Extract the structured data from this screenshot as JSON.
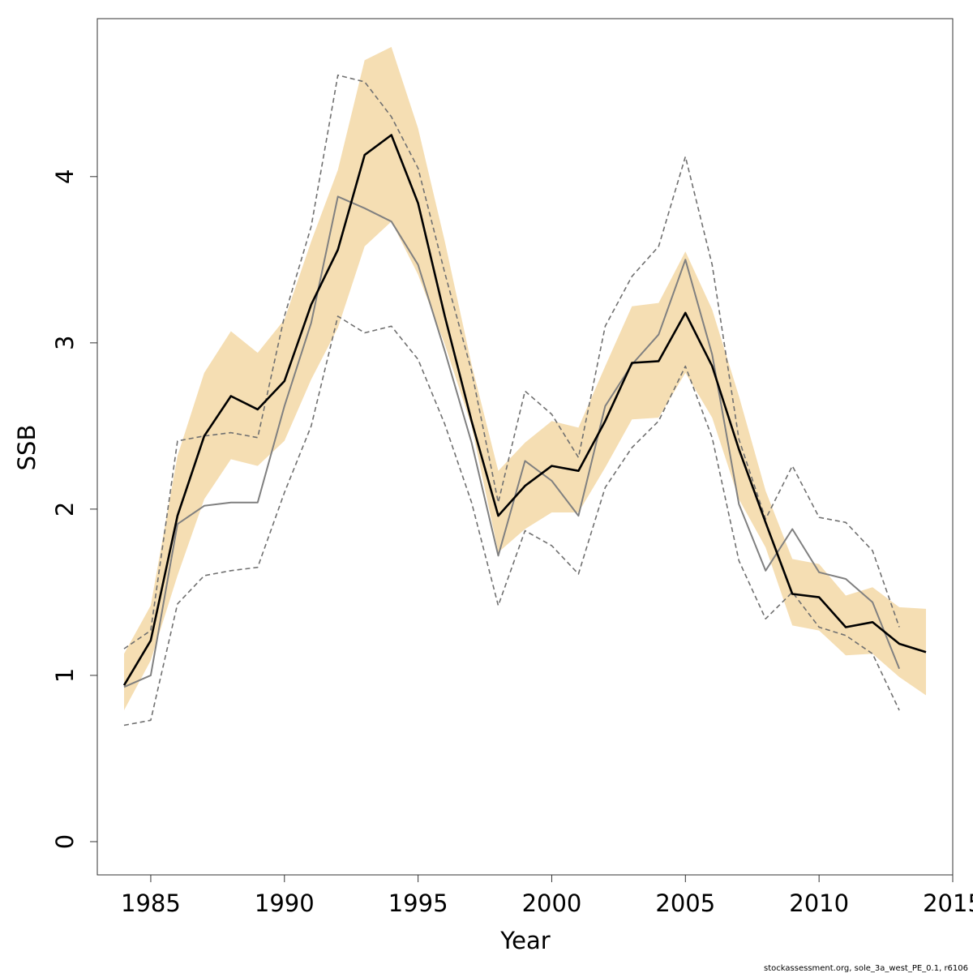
{
  "chart_data": {
    "type": "line",
    "xlabel": "Year",
    "ylabel": "SSB",
    "xlim": [
      1983,
      2015
    ],
    "ylim": [
      -0.2,
      4.95
    ],
    "x_ticks": [
      "1985",
      "1990",
      "1995",
      "2000",
      "2005",
      "2010",
      "2015"
    ],
    "y_ticks": [
      "0",
      "1",
      "2",
      "3",
      "4"
    ],
    "grid": false,
    "footer": "stockassessment.org, sole_3a_west_PE_0.1, r6106",
    "colors": {
      "band": "#f5deb3",
      "estimate": "#000000",
      "comparison": "#808080",
      "bounds": "#707070"
    },
    "x": [
      1984,
      1985,
      1986,
      1987,
      1988,
      1989,
      1990,
      1991,
      1992,
      1993,
      1994,
      1995,
      1996,
      1997,
      1998,
      1999,
      2000,
      2001,
      2002,
      2003,
      2004,
      2005,
      2006,
      2007,
      2008,
      2009,
      2010,
      2011,
      2012,
      2013,
      2014
    ],
    "series": [
      {
        "role": "band",
        "lower": [
          0.79,
          1.09,
          1.6,
          2.06,
          2.3,
          2.26,
          2.41,
          2.78,
          3.09,
          3.58,
          3.73,
          3.41,
          2.99,
          2.5,
          1.74,
          1.88,
          1.98,
          1.98,
          2.25,
          2.54,
          2.55,
          2.82,
          2.55,
          2.06,
          1.77,
          1.3,
          1.27,
          1.12,
          1.13,
          0.99,
          0.88
        ],
        "upper": [
          1.13,
          1.42,
          2.32,
          2.82,
          3.07,
          2.94,
          3.14,
          3.61,
          4.04,
          4.7,
          4.78,
          4.29,
          3.61,
          2.87,
          2.23,
          2.4,
          2.53,
          2.49,
          2.86,
          3.22,
          3.24,
          3.55,
          3.2,
          2.68,
          2.11,
          1.7,
          1.67,
          1.48,
          1.53,
          1.41,
          1.4
        ]
      },
      {
        "role": "estimate",
        "values": [
          0.94,
          1.21,
          1.96,
          2.44,
          2.68,
          2.6,
          2.77,
          3.23,
          3.56,
          4.13,
          4.25,
          3.84,
          3.16,
          2.53,
          1.96,
          2.14,
          2.26,
          2.23,
          2.53,
          2.88,
          2.89,
          3.18,
          2.86,
          2.36,
          1.92,
          1.49,
          1.47,
          1.29,
          1.32,
          1.19,
          1.14
        ]
      },
      {
        "role": "comparison",
        "values": [
          0.93,
          1.0,
          1.91,
          2.02,
          2.04,
          2.04,
          2.62,
          3.12,
          3.88,
          3.81,
          3.73,
          3.47,
          2.95,
          2.4,
          1.72,
          2.29,
          2.17,
          1.96,
          2.62,
          2.87,
          3.05,
          3.5,
          2.93,
          2.03,
          1.63,
          1.88,
          1.62,
          1.58,
          1.44,
          1.04,
          null
        ]
      },
      {
        "role": "upper-bound",
        "values": [
          1.16,
          1.27,
          2.41,
          2.44,
          2.46,
          2.43,
          3.16,
          3.7,
          4.61,
          4.57,
          4.36,
          4.05,
          3.42,
          2.83,
          2.04,
          2.71,
          2.57,
          2.31,
          3.1,
          3.4,
          3.58,
          4.12,
          3.47,
          2.42,
          1.94,
          2.26,
          1.95,
          1.92,
          1.75,
          1.29,
          null
        ]
      },
      {
        "role": "lower-bound",
        "values": [
          0.7,
          0.73,
          1.43,
          1.6,
          1.63,
          1.65,
          2.1,
          2.5,
          3.16,
          3.06,
          3.1,
          2.9,
          2.51,
          2.04,
          1.42,
          1.87,
          1.78,
          1.61,
          2.13,
          2.37,
          2.53,
          2.86,
          2.43,
          1.69,
          1.34,
          1.5,
          1.29,
          1.24,
          1.13,
          0.79,
          null
        ]
      }
    ]
  }
}
